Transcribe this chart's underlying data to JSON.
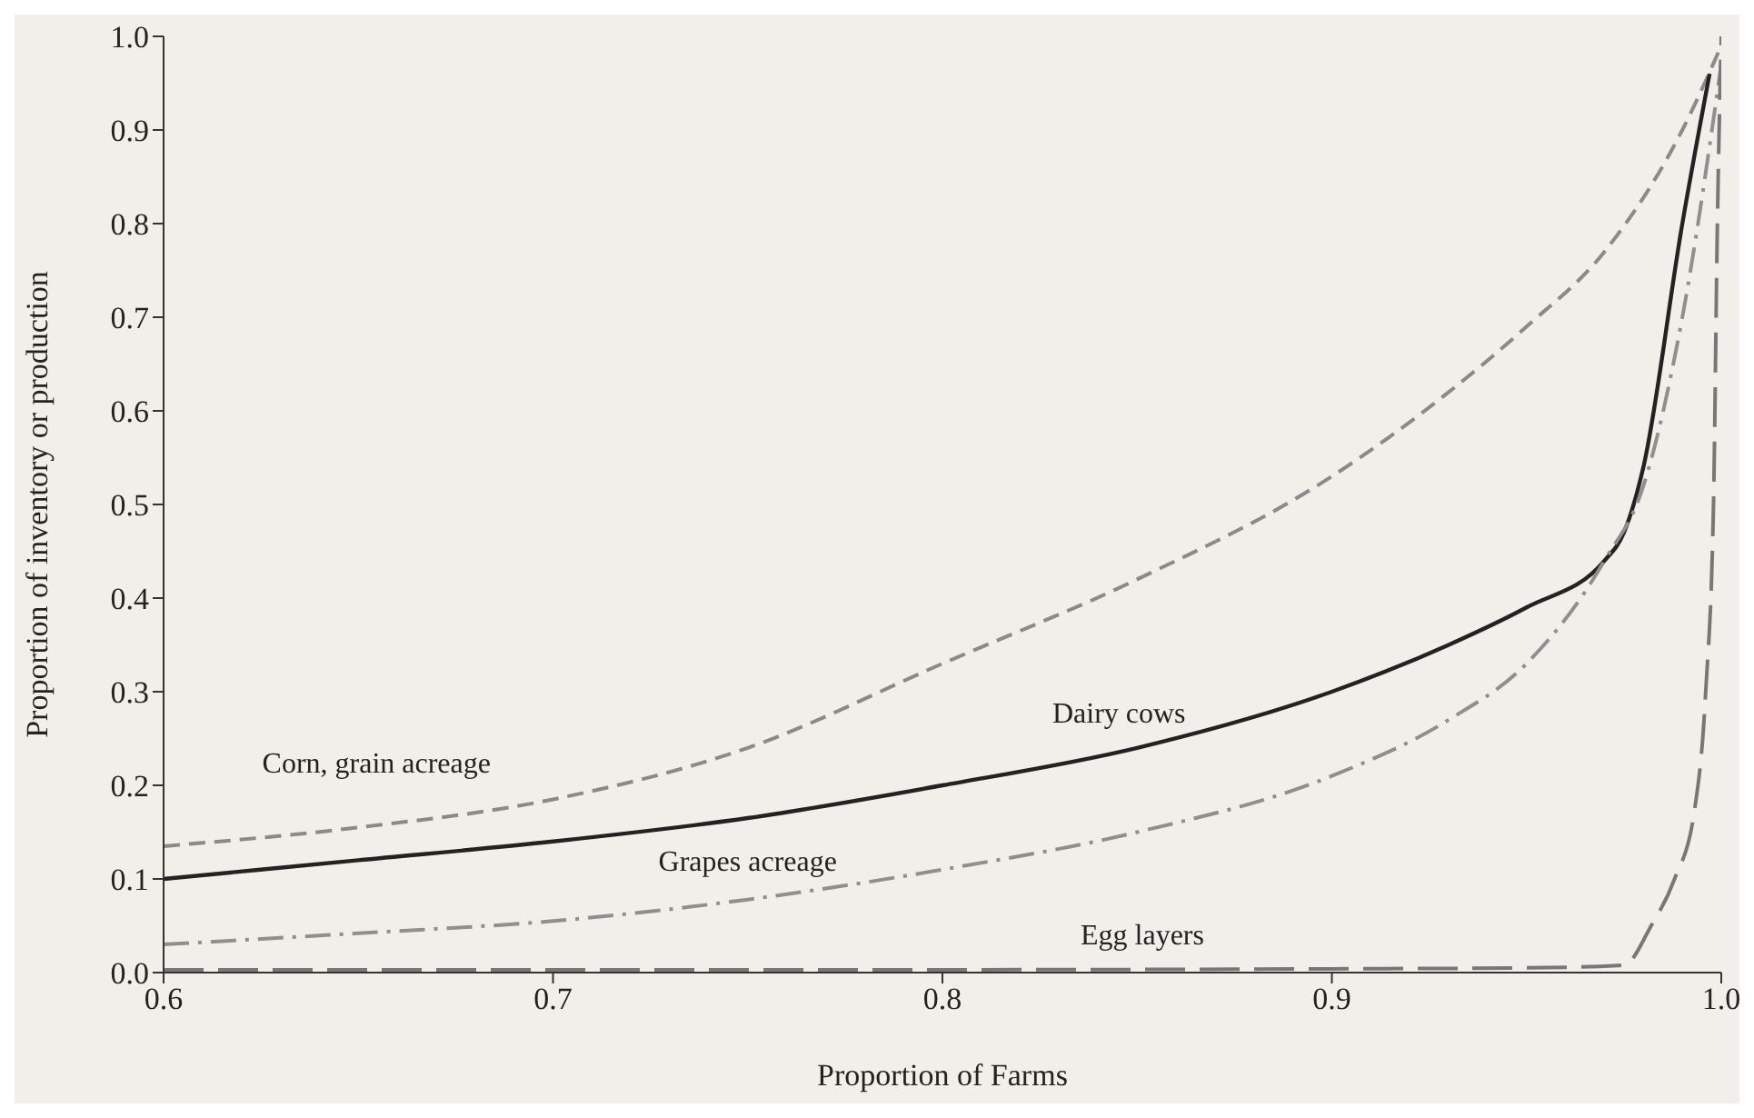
{
  "chart_data": {
    "type": "line",
    "xlabel": "Proportion of Farms",
    "ylabel": "Proportion of inventory or production",
    "xlim": [
      0.6,
      1.0
    ],
    "xticks": [
      0.6,
      0.7,
      0.8,
      0.9,
      {
        "value": 1,
        "label": "1.0"
      }
    ],
    "ylim": [
      0,
      1
    ],
    "yticks": [
      {
        "value": 0,
        "label": "0.0"
      },
      0.1,
      0.2,
      0.3,
      0.4,
      0.5,
      0.6,
      0.7,
      0.8,
      0.9,
      {
        "value": 1,
        "label": "1.0"
      }
    ],
    "grid": false,
    "legend": false,
    "marker": "none",
    "series": [
      {
        "name": "Corn, grain acreage",
        "color": "#8a8a8a",
        "line_style": "dashed",
        "x": [
          0.6,
          0.65,
          0.7,
          0.75,
          0.8,
          0.85,
          0.9,
          0.93,
          0.95,
          0.97,
          0.99,
          1.0
        ],
        "values": [
          0.135,
          0.155,
          0.185,
          0.24,
          0.33,
          0.42,
          0.53,
          0.62,
          0.69,
          0.77,
          0.9,
          0.99
        ]
      },
      {
        "name": "Dairy cows",
        "color": "#222222",
        "line_style": "solid",
        "x": [
          0.6,
          0.65,
          0.7,
          0.75,
          0.8,
          0.85,
          0.9,
          0.93,
          0.95,
          0.97,
          0.975,
          0.98,
          0.99,
          0.997
        ],
        "values": [
          0.1,
          0.12,
          0.14,
          0.165,
          0.2,
          0.24,
          0.3,
          0.35,
          0.39,
          0.44,
          0.47,
          0.54,
          0.8,
          0.96
        ]
      },
      {
        "name": "Grapes acreage",
        "color": "#8f8f8f",
        "line_style": "dotted",
        "x": [
          0.6,
          0.65,
          0.7,
          0.75,
          0.8,
          0.85,
          0.9,
          0.93,
          0.95,
          0.97,
          0.98,
          0.99,
          1.0
        ],
        "values": [
          0.03,
          0.042,
          0.055,
          0.078,
          0.11,
          0.15,
          0.21,
          0.27,
          0.33,
          0.44,
          0.52,
          0.7,
          0.97
        ]
      },
      {
        "name": "Egg layers",
        "color": "#777777",
        "line_style": "dashed",
        "x": [
          0.6,
          0.7,
          0.8,
          0.9,
          0.95,
          0.975,
          0.982,
          0.988,
          0.993,
          0.996,
          0.998,
          0.999,
          1.0
        ],
        "values": [
          0.003,
          0.003,
          0.003,
          0.004,
          0.005,
          0.008,
          0.05,
          0.1,
          0.17,
          0.3,
          0.5,
          0.8,
          1.0
        ]
      }
    ]
  }
}
